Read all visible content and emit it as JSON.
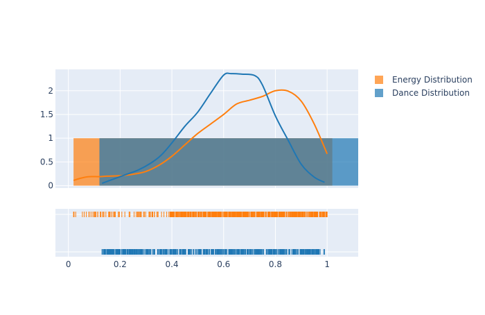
{
  "chart_data": {
    "type": "histogram+kde+rug",
    "x_ticks": [
      "0",
      "0.2",
      "0.4",
      "0.6",
      "0.8",
      "1"
    ],
    "xlim": [
      -0.05,
      1.12
    ],
    "density_panel": {
      "ylim": [
        -0.05,
        2.45
      ],
      "y_ticks": [
        "0",
        "0.5",
        "1",
        "1.5",
        "2"
      ]
    },
    "series": [
      {
        "name": "Energy Distribution",
        "color": "#ff7f0e",
        "histogram": {
          "x_start": 0.02,
          "x_end": 1.02,
          "height": 1
        },
        "kde": {
          "x": [
            0.02,
            0.05,
            0.08,
            0.12,
            0.15,
            0.2,
            0.25,
            0.3,
            0.35,
            0.4,
            0.45,
            0.5,
            0.55,
            0.6,
            0.65,
            0.7,
            0.75,
            0.8,
            0.85,
            0.9,
            0.95,
            1.0
          ],
          "y": [
            0.11,
            0.16,
            0.19,
            0.19,
            0.2,
            0.21,
            0.24,
            0.3,
            0.43,
            0.62,
            0.86,
            1.1,
            1.3,
            1.5,
            1.72,
            1.8,
            1.88,
            2.0,
            1.99,
            1.78,
            1.3,
            0.67
          ]
        },
        "rug": {
          "x_min": 0.02,
          "x_max": 1.0,
          "dense_from": 0.39
        }
      },
      {
        "name": "Dance Distribution",
        "color": "#1f77b4",
        "histogram": {
          "x_start": 0.12,
          "x_end": 1.12,
          "height": 1
        },
        "kde": {
          "x": [
            0.13,
            0.18,
            0.22,
            0.27,
            0.32,
            0.36,
            0.4,
            0.45,
            0.5,
            0.55,
            0.6,
            0.63,
            0.67,
            0.72,
            0.75,
            0.8,
            0.85,
            0.9,
            0.95,
            0.99
          ],
          "y": [
            0.05,
            0.15,
            0.23,
            0.33,
            0.48,
            0.65,
            0.9,
            1.25,
            1.55,
            1.95,
            2.33,
            2.36,
            2.35,
            2.32,
            2.12,
            1.47,
            0.95,
            0.45,
            0.18,
            0.07
          ]
        },
        "rug": {
          "x_min": 0.13,
          "x_max": 0.99,
          "dense_from": 0.22
        }
      }
    ]
  }
}
